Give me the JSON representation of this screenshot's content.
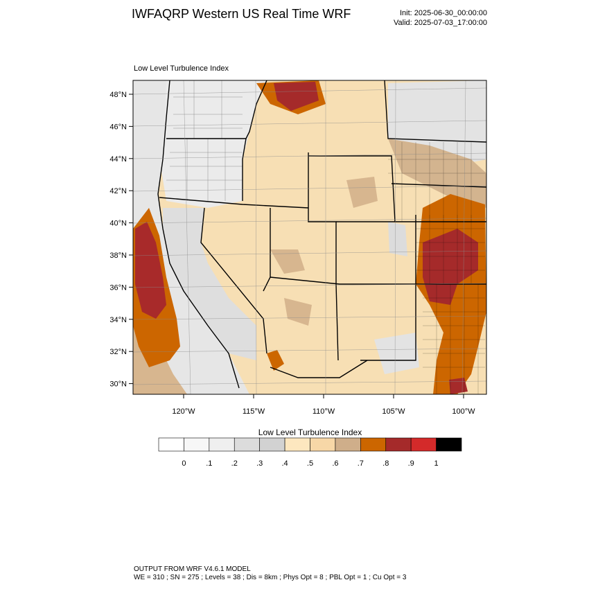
{
  "header": {
    "title": "IWFAQRP Western US Real Time WRF",
    "init": "Init: 2025-06-30_00:00:00",
    "valid": "Valid: 2025-07-03_17:00:00"
  },
  "map": {
    "subtitle": "Low Level Turbulence Index",
    "lat_ticks": [
      "48°N",
      "46°N",
      "44°N",
      "42°N",
      "40°N",
      "38°N",
      "36°N",
      "34°N",
      "32°N",
      "30°N"
    ],
    "lon_ticks": [
      "120°W",
      "115°W",
      "110°W",
      "105°W",
      "100°W"
    ],
    "lat_values": [
      48,
      46,
      44,
      42,
      40,
      38,
      36,
      34,
      32,
      30
    ],
    "lon_values": [
      -120,
      -115,
      -110,
      -105,
      -100
    ]
  },
  "colorbar": {
    "title": "Low Level Turbulence Index",
    "labels": [
      "0",
      ".1",
      ".2",
      ".3",
      ".4",
      ".5",
      ".6",
      ".7",
      ".8",
      ".9",
      "1"
    ],
    "colors": [
      "#ffffff",
      "#f7f7f7",
      "#efefef",
      "#dcdcdc",
      "#d2d2d2",
      "#fde7bf",
      "#f7d7a7",
      "#cfae8a",
      "#cc6600",
      "#a52a2a",
      "#d42a2a",
      "#000000"
    ]
  },
  "footer": {
    "line1": "OUTPUT FROM WRF V4.6.1 MODEL",
    "line2": "WE = 310 ; SN = 275 ; Levels = 38 ; Dis = 8km ; Phys Opt = 8 ; PBL Opt = 1 ; Cu Opt = 3"
  }
}
